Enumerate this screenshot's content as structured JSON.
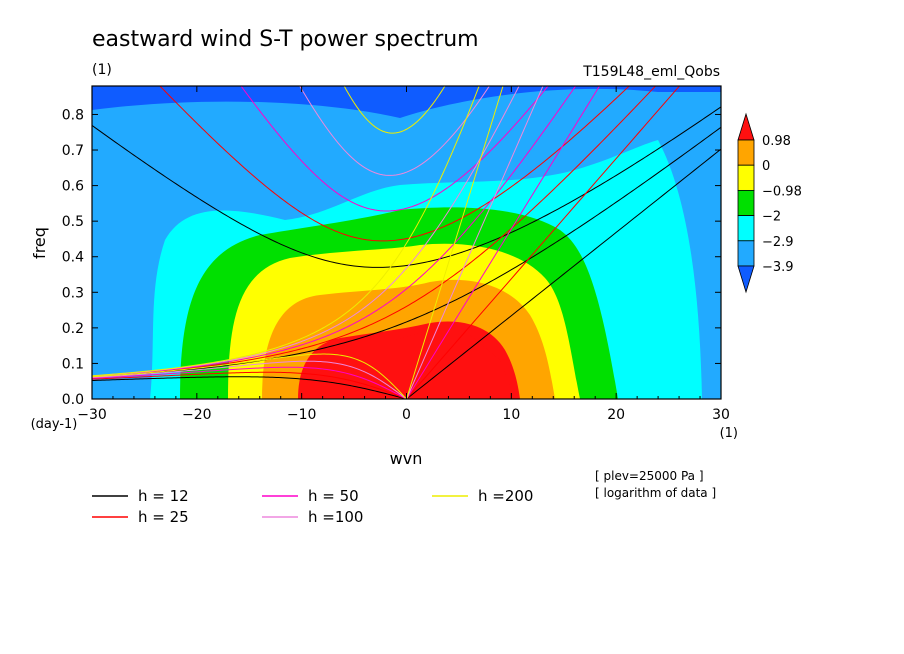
{
  "chart_data": {
    "type": "heatmap",
    "title": "eastward wind S-T power spectrum",
    "title_unit": "(1)",
    "experiment": "T159L48_eml_Qobs",
    "xlabel": "wvn",
    "x_unit": "(1)",
    "ylabel": "freq",
    "y_unit": "(day-1)",
    "xlim": [
      -30,
      30
    ],
    "ylim": [
      0,
      0.88
    ],
    "x_ticks": [
      "−30",
      "−20",
      "−10",
      "0",
      "10",
      "20",
      "30"
    ],
    "y_ticks": [
      "0.0",
      "0.1",
      "0.2",
      "0.3",
      "0.4",
      "0.5",
      "0.6",
      "0.7",
      "0.8"
    ],
    "colorbar": {
      "levels": [
        "0.98",
        "0",
        "−0.98",
        "−2",
        "−2.9",
        "−3.9"
      ],
      "colors": [
        "#ff1010",
        "#ffa500",
        "#ffff00",
        "#00e000",
        "#00ffff",
        "#22aaff",
        "#0f5cff",
        "#1f45f0"
      ]
    },
    "series": [
      {
        "name": "h = 12",
        "h": 12,
        "color": "#000000"
      },
      {
        "name": "h = 25",
        "h": 25,
        "color": "#ff0000"
      },
      {
        "name": "h = 50",
        "h": 50,
        "color": "#ff00cc"
      },
      {
        "name": "h =100",
        "h": 100,
        "color": "#ee88dd"
      },
      {
        "name": "h =200",
        "h": 200,
        "color": "#eeee00"
      }
    ],
    "annotations": [
      "[ plev=25000 Pa ]",
      "[ logarithm of data ]"
    ],
    "grid": false,
    "legend": "bottom-left"
  }
}
